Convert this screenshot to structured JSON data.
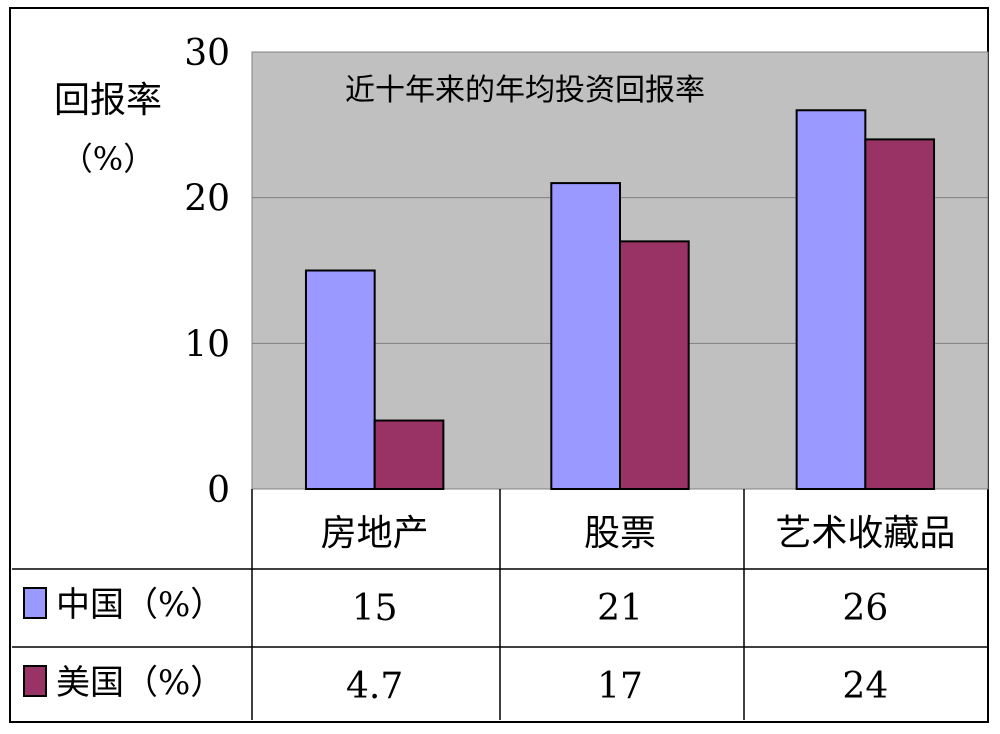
{
  "chart_data": {
    "type": "bar",
    "title": "近十年来的年均投资回报率",
    "ylabel_line1": "回报率",
    "ylabel_line2": "（%）",
    "ylim": [
      0,
      30
    ],
    "yticks": [
      "0",
      "10",
      "20",
      "30"
    ],
    "categories": [
      "房地产",
      "股票",
      "艺术收藏品"
    ],
    "series": [
      {
        "name": "中国（%）",
        "color": "#9999ff",
        "values": [
          15,
          21,
          26
        ],
        "labels": [
          "15",
          "21",
          "26"
        ]
      },
      {
        "name": "美国（%）",
        "color": "#993366",
        "values": [
          4.7,
          17,
          24
        ],
        "labels": [
          "4.7",
          "17",
          "24"
        ]
      }
    ],
    "plot_background": "#c0c0c0",
    "grid": true,
    "data_table": true
  }
}
